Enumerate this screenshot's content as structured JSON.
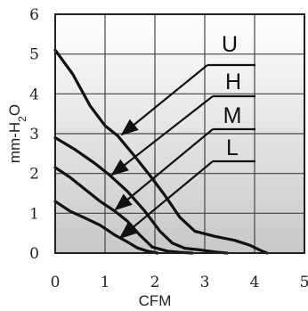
{
  "chart_data": {
    "type": "line",
    "title": "",
    "xlabel": "CFM",
    "ylabel": "mm-H2O",
    "xlim": [
      0,
      5
    ],
    "ylim": [
      0,
      6
    ],
    "xticks": [
      "0",
      "1",
      "2",
      "3",
      "4",
      "5"
    ],
    "yticks": [
      "0",
      "1",
      "2",
      "3",
      "4",
      "5",
      "6"
    ],
    "grid": true,
    "background": "vertical gradient, white at top to light gray at bottom",
    "colors": {
      "curve": "#111111",
      "grid": "#444444",
      "bg_top": "#ffffff",
      "bg_bottom": "#c8c8c8"
    },
    "series": [
      {
        "name": "U",
        "x": [
          0,
          0.35,
          0.7,
          1.0,
          1.25,
          1.55,
          1.9,
          2.2,
          2.5,
          2.8,
          3.2,
          3.6,
          3.9,
          4.15,
          4.25
        ],
        "y": [
          5.1,
          4.5,
          3.7,
          3.2,
          2.95,
          2.5,
          1.95,
          1.45,
          0.9,
          0.55,
          0.42,
          0.32,
          0.2,
          0.05,
          0.0
        ]
      },
      {
        "name": "H",
        "x": [
          0,
          0.4,
          0.8,
          1.1,
          1.45,
          1.8,
          2.1,
          2.35,
          2.6,
          2.9,
          3.2,
          3.45
        ],
        "y": [
          2.9,
          2.6,
          2.25,
          1.95,
          1.55,
          1.05,
          0.55,
          0.25,
          0.12,
          0.08,
          0.03,
          0.0
        ]
      },
      {
        "name": "M",
        "x": [
          0,
          0.3,
          0.6,
          0.9,
          1.2,
          1.45,
          1.7,
          1.95,
          2.25,
          2.5,
          2.75
        ],
        "y": [
          2.15,
          1.9,
          1.6,
          1.3,
          1.05,
          0.8,
          0.45,
          0.15,
          0.05,
          0.02,
          0.0
        ]
      },
      {
        "name": "L",
        "x": [
          0,
          0.3,
          0.6,
          0.9,
          1.2,
          1.45,
          1.65,
          1.85,
          2.05
        ],
        "y": [
          1.3,
          1.05,
          0.88,
          0.7,
          0.45,
          0.28,
          0.13,
          0.05,
          0.0
        ]
      }
    ],
    "annotations": [
      {
        "label": "U",
        "series": "U"
      },
      {
        "label": "H",
        "series": "H"
      },
      {
        "label": "M",
        "series": "M"
      },
      {
        "label": "L",
        "series": "L"
      }
    ]
  }
}
